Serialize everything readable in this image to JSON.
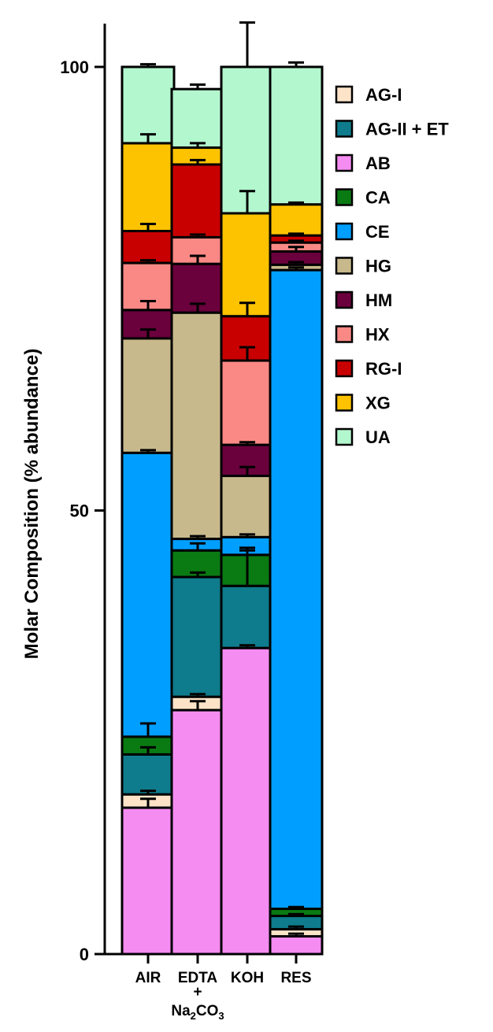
{
  "chart_data": {
    "type": "bar",
    "stacked": true,
    "title": "",
    "xlabel": "",
    "ylabel": "Molar Composition (% abundance)",
    "ylim": [
      0,
      105
    ],
    "yticks": [
      "0",
      "50",
      "100"
    ],
    "categories": [
      "AIR",
      "EDTA",
      "KOH",
      "RES"
    ],
    "category_sublabels": [
      "",
      "+",
      "",
      ""
    ],
    "edta_formula": {
      "na": "Na",
      "sub1": "2",
      "co": "CO",
      "sub2": "3"
    },
    "legend_position": "right",
    "series": [
      {
        "name": "AB",
        "color": "#f58cf2",
        "values": [
          16.5,
          27.5,
          34.5,
          2.0
        ],
        "errors": [
          1.0,
          1.0,
          0.3,
          0.3
        ]
      },
      {
        "name": "AG-I",
        "color": "#fde4c8",
        "values": [
          1.5,
          1.5,
          0,
          0.8
        ],
        "errors": [
          0.4,
          0.3,
          0,
          0.3
        ]
      },
      {
        "name": "AG-II + ET",
        "color": "#0e7c8c",
        "values": [
          4.5,
          13.5,
          7.0,
          1.5
        ],
        "errors": [
          0.8,
          0.5,
          4.0,
          0.2
        ]
      },
      {
        "name": "CA",
        "color": "#0a7a13",
        "values": [
          2.0,
          3.0,
          3.5,
          0.8
        ],
        "errors": [
          1.5,
          0.8,
          0.8,
          0.2
        ]
      },
      {
        "name": "CE",
        "color": "#009fff",
        "values": [
          32.0,
          1.3,
          2.0,
          72.0
        ],
        "errors": [
          0.3,
          0.3,
          0.3,
          0.3
        ]
      },
      {
        "name": "HG",
        "color": "#c8b98c",
        "values": [
          12.9,
          25.5,
          6.9,
          0.6
        ],
        "errors": [
          1.0,
          1.0,
          1.0,
          0.3
        ]
      },
      {
        "name": "HM",
        "color": "#6a003c",
        "values": [
          3.2,
          5.5,
          3.5,
          1.5
        ],
        "errors": [
          1.0,
          0.9,
          0.3,
          0.5
        ]
      },
      {
        "name": "HX",
        "color": "#fa8985",
        "values": [
          5.3,
          3.0,
          9.5,
          1.0
        ],
        "errors": [
          0.3,
          0.3,
          1.5,
          0.2
        ]
      },
      {
        "name": "RG-I",
        "color": "#c80000",
        "values": [
          3.6,
          8.2,
          5.0,
          0.8
        ],
        "errors": [
          0.8,
          0.5,
          1.5,
          0.2
        ]
      },
      {
        "name": "XG",
        "color": "#fdc300",
        "values": [
          9.9,
          1.9,
          11.6,
          3.5
        ],
        "errors": [
          1.0,
          0.5,
          2.5,
          0.2
        ]
      },
      {
        "name": "UA",
        "color": "#b3f7cf",
        "values": [
          8.6,
          6.6,
          16.5,
          15.5
        ],
        "errors": [
          0.3,
          0.5,
          5.0,
          0.5
        ]
      }
    ],
    "legend_order": [
      "AG-I",
      "AG-II + ET",
      "AB",
      "CA",
      "CE",
      "HG",
      "HM",
      "HX",
      "RG-I",
      "XG",
      "UA"
    ]
  }
}
